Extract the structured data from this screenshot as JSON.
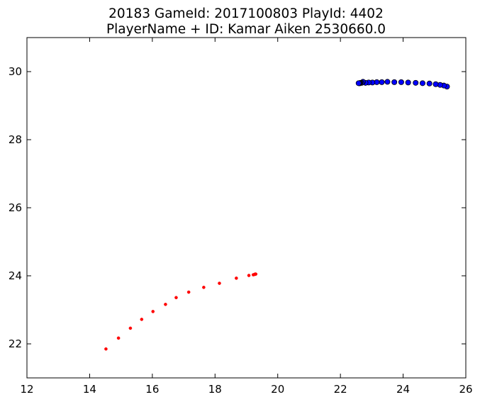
{
  "chart_data": {
    "type": "scatter",
    "title": [
      "20183 GameId: 2017100803 PlayId: 4402",
      "PlayerName + ID: Kamar Aiken 2530660.0"
    ],
    "xlabel": "",
    "ylabel": "",
    "xlim": [
      12,
      26
    ],
    "ylim": [
      21,
      31
    ],
    "xticks": [
      12,
      14,
      16,
      18,
      20,
      22,
      24,
      26
    ],
    "yticks": [
      22,
      24,
      26,
      28,
      30
    ],
    "grid": false,
    "legend": "none",
    "series": [
      {
        "color": "#ff0000",
        "marker": "small-dot",
        "points": [
          [
            14.52,
            21.85
          ],
          [
            14.92,
            22.17
          ],
          [
            15.3,
            22.46
          ],
          [
            15.66,
            22.72
          ],
          [
            16.02,
            22.95
          ],
          [
            16.42,
            23.16
          ],
          [
            16.76,
            23.36
          ],
          [
            17.16,
            23.52
          ],
          [
            17.64,
            23.66
          ],
          [
            18.14,
            23.78
          ],
          [
            18.68,
            23.93
          ],
          [
            19.08,
            24.01
          ],
          [
            19.22,
            24.03
          ],
          [
            19.26,
            24.04
          ],
          [
            19.28,
            24.05
          ],
          [
            19.3,
            24.05
          ]
        ]
      },
      {
        "color": "#0000ff",
        "marker": "circle",
        "points": [
          [
            25.4,
            29.56
          ],
          [
            25.3,
            29.59
          ],
          [
            25.18,
            29.61
          ],
          [
            25.04,
            29.63
          ],
          [
            24.84,
            29.65
          ],
          [
            24.62,
            29.66
          ],
          [
            24.4,
            29.67
          ],
          [
            24.16,
            29.68
          ],
          [
            23.94,
            29.69
          ],
          [
            23.72,
            29.69
          ],
          [
            23.5,
            29.7
          ],
          [
            23.32,
            29.69
          ],
          [
            23.16,
            29.69
          ],
          [
            23.02,
            29.68
          ],
          [
            22.9,
            29.68
          ],
          [
            22.8,
            29.67
          ],
          [
            22.72,
            29.7
          ],
          [
            22.68,
            29.67
          ],
          [
            22.64,
            29.67
          ],
          [
            22.62,
            29.66
          ],
          [
            22.6,
            29.66
          ],
          [
            22.58,
            29.66
          ]
        ]
      }
    ]
  }
}
